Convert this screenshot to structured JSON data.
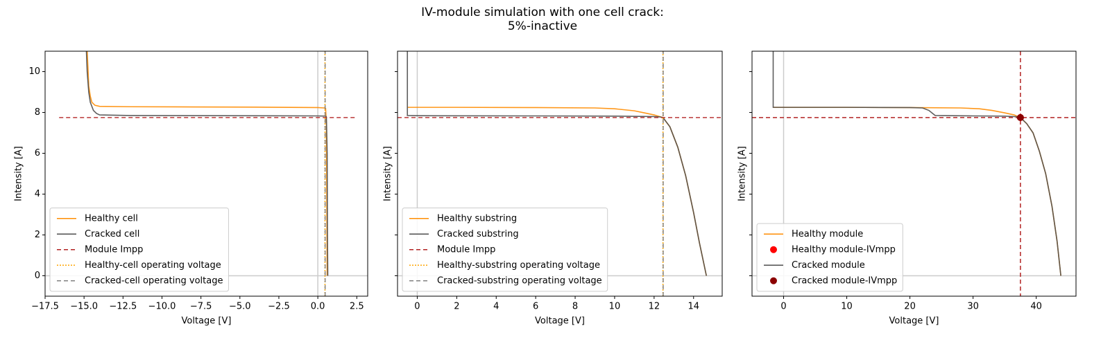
{
  "title": "IV-module simulation with one cell crack:\n5%-inactive",
  "chart_data": [
    {
      "type": "line",
      "xlabel": "Voltage [V]",
      "ylabel": "Intensity [A]",
      "xlim": [
        -17.5,
        3.2
      ],
      "ylim": [
        -1,
        11
      ],
      "xticks": [
        {
          "value": -17.5,
          "label": "−17.5"
        },
        {
          "value": -15,
          "label": "−15.0"
        },
        {
          "value": -12.5,
          "label": "−12.5"
        },
        {
          "value": -10,
          "label": "−10.0"
        },
        {
          "value": -7.5,
          "label": "−7.5"
        },
        {
          "value": -5,
          "label": "−5.0"
        },
        {
          "value": -2.5,
          "label": "−2.5"
        },
        {
          "value": 0,
          "label": "0.0"
        },
        2.5
      ],
      "yticks": [
        0,
        2,
        4,
        6,
        8,
        10
      ],
      "show_ytick_labels": true,
      "legend": "lower left",
      "reference_lines": [
        {
          "axis": "y",
          "value": 0,
          "color": "#cccccc",
          "dash": "solid"
        },
        {
          "axis": "x",
          "value": 0,
          "color": "#cccccc",
          "dash": "solid"
        }
      ],
      "series": [
        {
          "name": "Healthy cell",
          "color": "#ff8c00",
          "style": "line",
          "dash": "solid",
          "x": [
            -14.8,
            -14.75,
            -14.7,
            -14.6,
            -14.5,
            -14.3,
            -14,
            -12,
            -8,
            -4,
            0,
            0.4,
            0.5,
            0.55,
            0.58,
            0.6
          ],
          "values": [
            11,
            10.2,
            9.3,
            8.8,
            8.5,
            8.35,
            8.3,
            8.28,
            8.27,
            8.26,
            8.24,
            8.22,
            8.2,
            7.5,
            3,
            0
          ]
        },
        {
          "name": "Cracked cell",
          "color": "#4d4d4d",
          "style": "line",
          "dash": "solid",
          "x": [
            -14.85,
            -14.8,
            -14.7,
            -14.6,
            -14.4,
            -14.2,
            -14,
            -12,
            -6,
            0,
            0.5,
            0.55,
            0.6,
            0.62,
            0.64
          ],
          "values": [
            11,
            10,
            9,
            8.5,
            8.1,
            7.95,
            7.88,
            7.85,
            7.84,
            7.83,
            7.82,
            7.78,
            6,
            2,
            0
          ]
        },
        {
          "name": "Module Impp",
          "color": "#b22222",
          "style": "line",
          "dash": "dashed",
          "x": [
            -16.6,
            2.4
          ],
          "values": [
            7.75,
            7.75
          ]
        },
        {
          "name": "Healthy-cell operating voltage",
          "color": "#ffa500",
          "style": "line",
          "dash": "dotted",
          "x": [
            0.46,
            0.46
          ],
          "values": [
            -1,
            11
          ]
        },
        {
          "name": "Cracked-cell operating voltage",
          "color": "#808080",
          "style": "line",
          "dash": "dashed",
          "x": [
            0.47,
            0.47
          ],
          "values": [
            -1,
            11
          ]
        }
      ]
    },
    {
      "type": "line",
      "xlabel": "Voltage [V]",
      "ylabel": "Intensity [A]",
      "xlim": [
        -1,
        15.45
      ],
      "ylim": [
        -1,
        11
      ],
      "xticks": [
        0,
        2,
        4,
        6,
        8,
        10,
        12,
        14
      ],
      "yticks": [
        0,
        2,
        4,
        6,
        8,
        10
      ],
      "show_ytick_labels": false,
      "legend": "lower left",
      "reference_lines": [
        {
          "axis": "y",
          "value": 0,
          "color": "#cccccc",
          "dash": "solid"
        },
        {
          "axis": "x",
          "value": 0,
          "color": "#cccccc",
          "dash": "solid"
        }
      ],
      "series": [
        {
          "name": "Healthy substring",
          "color": "#ff8c00",
          "style": "line",
          "dash": "solid",
          "x": [
            -0.5,
            2,
            6,
            9,
            10,
            11,
            11.5,
            12,
            12.45,
            12.8,
            13.2,
            13.6,
            14,
            14.3,
            14.65
          ],
          "values": [
            8.25,
            8.25,
            8.24,
            8.22,
            8.18,
            8.08,
            7.98,
            7.88,
            7.75,
            7.3,
            6.3,
            4.9,
            3.1,
            1.6,
            0
          ]
        },
        {
          "name": "Cracked substring",
          "color": "#4d4d4d",
          "style": "line",
          "dash": "solid",
          "x": [
            -0.5,
            -0.5,
            0,
            6,
            10,
            12,
            12.3,
            12.45,
            12.8,
            13.2,
            13.6,
            14,
            14.3,
            14.65
          ],
          "values": [
            11,
            7.85,
            7.84,
            7.83,
            7.82,
            7.8,
            7.78,
            7.75,
            7.3,
            6.3,
            4.9,
            3.1,
            1.6,
            0
          ]
        },
        {
          "name": "Module Impp",
          "color": "#b22222",
          "style": "line",
          "dash": "dashed",
          "x": [
            -1,
            15.45
          ],
          "values": [
            7.75,
            7.75
          ]
        },
        {
          "name": "Healthy-substring operating voltage",
          "color": "#ffa500",
          "style": "line",
          "dash": "dotted",
          "x": [
            12.45,
            12.45
          ],
          "values": [
            -1,
            11
          ]
        },
        {
          "name": "Cracked-substring operating voltage",
          "color": "#808080",
          "style": "line",
          "dash": "dashed",
          "x": [
            12.46,
            12.46
          ],
          "values": [
            -1,
            11
          ]
        }
      ]
    },
    {
      "type": "line",
      "xlabel": "Voltage [V]",
      "ylabel": "Intensity [A]",
      "xlim": [
        -5,
        46.3
      ],
      "ylim": [
        -1,
        11
      ],
      "xticks": [
        0,
        10,
        20,
        30,
        40
      ],
      "yticks": [
        0,
        2,
        4,
        6,
        8,
        10
      ],
      "show_ytick_labels": false,
      "legend": "lower left",
      "reference_lines": [
        {
          "axis": "y",
          "value": 0,
          "color": "#cccccc",
          "dash": "solid"
        },
        {
          "axis": "x",
          "value": 0,
          "color": "#cccccc",
          "dash": "solid"
        },
        {
          "axis": "y",
          "value": 7.75,
          "color": "#b22222",
          "dash": "dashed"
        },
        {
          "axis": "x",
          "value": 37.5,
          "color": "#b22222",
          "dash": "dashed"
        }
      ],
      "series": [
        {
          "name": "Healthy module",
          "color": "#ff8c00",
          "style": "line",
          "dash": "solid",
          "x": [
            -1.65,
            10,
            20,
            28,
            31,
            33,
            35,
            36.5,
            37.5,
            38.5,
            39.5,
            40.5,
            41.5,
            42.5,
            43.3,
            43.9
          ],
          "values": [
            8.25,
            8.25,
            8.24,
            8.22,
            8.18,
            8.1,
            7.98,
            7.88,
            7.75,
            7.45,
            7,
            6.1,
            5,
            3.4,
            1.7,
            0
          ]
        },
        {
          "name": "Healthy module-IVmpp",
          "color": "#ff0000",
          "style": "scatter",
          "x": [
            37.5
          ],
          "values": [
            7.75
          ]
        },
        {
          "name": "Cracked module",
          "color": "#4d4d4d",
          "style": "line",
          "dash": "solid",
          "x": [
            -1.65,
            -1.65,
            10,
            20,
            22,
            23,
            24,
            30,
            35,
            37,
            37.5,
            38.5,
            39.5,
            40.5,
            41.5,
            42.5,
            43.3,
            43.9
          ],
          "values": [
            11,
            8.25,
            8.25,
            8.24,
            8.22,
            8.1,
            7.85,
            7.83,
            7.82,
            7.79,
            7.75,
            7.45,
            7,
            6.1,
            5,
            3.4,
            1.7,
            0
          ]
        },
        {
          "name": "Cracked module-IVmpp",
          "color": "#8b0000",
          "style": "scatter",
          "x": [
            37.5
          ],
          "values": [
            7.75
          ]
        }
      ]
    }
  ]
}
